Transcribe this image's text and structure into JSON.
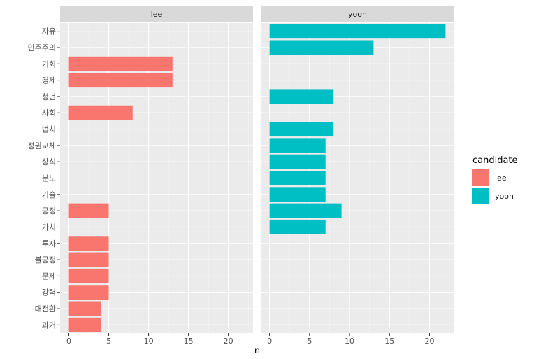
{
  "chart_data": {
    "type": "bar",
    "orientation": "horizontal",
    "facet_by": "candidate",
    "categories": [
      "자유",
      "민주주의",
      "기회",
      "경제",
      "청년",
      "사회",
      "법치",
      "정권교체",
      "상식",
      "분노",
      "기술",
      "공정",
      "가치",
      "투자",
      "불공정",
      "문제",
      "강력",
      "대전환",
      "과거"
    ],
    "series": [
      {
        "name": "lee",
        "color": "#F8766D",
        "values": [
          null,
          null,
          13,
          13,
          null,
          8,
          null,
          null,
          null,
          null,
          null,
          5,
          null,
          5,
          5,
          5,
          5,
          4,
          4
        ]
      },
      {
        "name": "yoon",
        "color": "#00BFC4",
        "values": [
          22,
          13,
          null,
          null,
          8,
          null,
          8,
          7,
          7,
          7,
          7,
          9,
          7,
          null,
          null,
          null,
          null,
          null,
          null
        ]
      }
    ],
    "xlabel": "n",
    "ylabel": "",
    "xlim": [
      -1.1,
      23.1
    ],
    "xticks": [
      0,
      5,
      10,
      15,
      20
    ],
    "grid": true,
    "legend": {
      "title": "candidate",
      "entries": [
        "lee",
        "yoon"
      ],
      "position": "right"
    }
  }
}
